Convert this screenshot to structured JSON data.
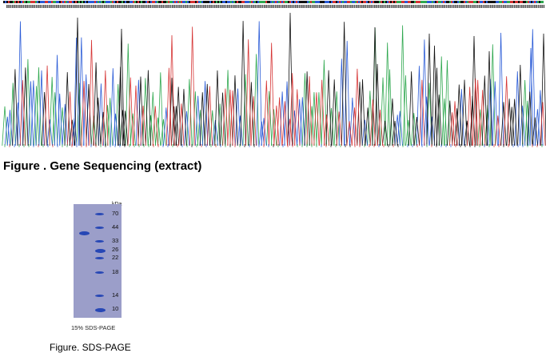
{
  "sequencing": {
    "caption": "Figure . Gene Sequencing (extract)",
    "base_colors": {
      "A": "#2fa84f",
      "C": "#2a5bd7",
      "G": "#111111",
      "T": "#d63434"
    }
  },
  "sds_page": {
    "gel_color": "#9b9ec9",
    "band_color": "#2747b5",
    "unit_label": "kDa",
    "markers": [
      "70",
      "44",
      "33",
      "26",
      "22",
      "18",
      "14",
      "10"
    ],
    "subcaption": "15% SDS-PAGE",
    "caption": "Figure. SDS-PAGE"
  }
}
